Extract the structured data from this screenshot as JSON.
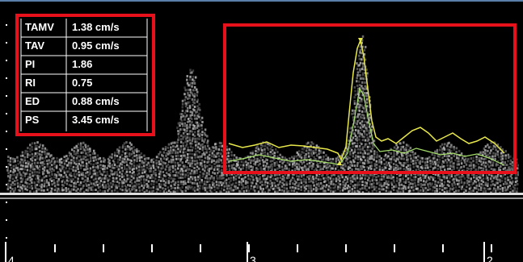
{
  "measurements": {
    "rows": [
      [
        "TAMV",
        "1.38 cm/s"
      ],
      [
        "TAV",
        "0.95 cm/s"
      ],
      [
        "PI",
        "1.86"
      ],
      [
        "RI",
        "0.75"
      ],
      [
        "ED",
        "0.88 cm/s"
      ],
      [
        "PS",
        "3.45 cm/s"
      ]
    ]
  },
  "time_axis": {
    "labels": [
      "4",
      "3",
      "2"
    ]
  }
}
